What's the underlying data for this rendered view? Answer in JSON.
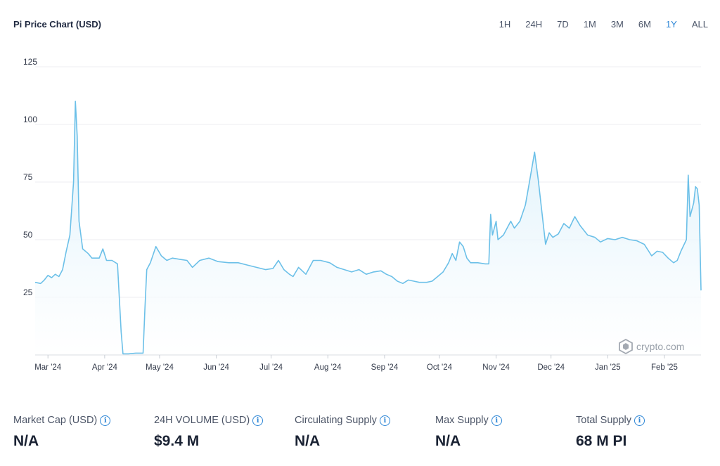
{
  "header": {
    "title": "Pi Price Chart (USD)",
    "ranges": [
      "1H",
      "24H",
      "7D",
      "1M",
      "3M",
      "6M",
      "1Y",
      "ALL"
    ],
    "active_range": "1Y"
  },
  "watermark": {
    "label": "crypto.com",
    "icon": "crypto-com-logo-icon"
  },
  "colors": {
    "line": "#6cc0e8",
    "fill_top": "#d6eefa",
    "accent": "#2d86d6"
  },
  "chart_data": {
    "type": "area",
    "title": "Pi Price Chart (USD)",
    "ylim": [
      0,
      125
    ],
    "yticks": [
      25,
      50,
      75,
      100,
      125
    ],
    "xtick_labels": [
      "Mar '24",
      "Apr '24",
      "May '24",
      "Jun '24",
      "Jul '24",
      "Aug '24",
      "Sep '24",
      "Oct '24",
      "Nov '24",
      "Dec '24",
      "Jan '25",
      "Feb '25"
    ],
    "grid": true,
    "points": [
      [
        "2024-02-23",
        31.5
      ],
      [
        "2024-02-26",
        31.0
      ],
      [
        "2024-02-28",
        32.5
      ],
      [
        "2024-03-01",
        34.5
      ],
      [
        "2024-03-03",
        33.5
      ],
      [
        "2024-03-05",
        35.0
      ],
      [
        "2024-03-07",
        34.0
      ],
      [
        "2024-03-09",
        37.0
      ],
      [
        "2024-03-11",
        45.0
      ],
      [
        "2024-03-13",
        52.0
      ],
      [
        "2024-03-15",
        75.0
      ],
      [
        "2024-03-16",
        110.0
      ],
      [
        "2024-03-17",
        95.0
      ],
      [
        "2024-03-18",
        58.0
      ],
      [
        "2024-03-20",
        46.0
      ],
      [
        "2024-03-23",
        44.0
      ],
      [
        "2024-03-25",
        42.0
      ],
      [
        "2024-03-29",
        42.0
      ],
      [
        "2024-03-31",
        46.0
      ],
      [
        "2024-04-02",
        41.0
      ],
      [
        "2024-04-05",
        41.0
      ],
      [
        "2024-04-08",
        39.5
      ],
      [
        "2024-04-10",
        10.0
      ],
      [
        "2024-04-11",
        0.5
      ],
      [
        "2024-04-14",
        0.5
      ],
      [
        "2024-04-18",
        0.8
      ],
      [
        "2024-04-22",
        0.8
      ],
      [
        "2024-04-23",
        20.0
      ],
      [
        "2024-04-24",
        37.0
      ],
      [
        "2024-04-26",
        40.0
      ],
      [
        "2024-04-29",
        47.0
      ],
      [
        "2024-05-02",
        43.0
      ],
      [
        "2024-05-05",
        41.0
      ],
      [
        "2024-05-08",
        42.0
      ],
      [
        "2024-05-12",
        41.5
      ],
      [
        "2024-05-16",
        41.0
      ],
      [
        "2024-05-19",
        38.0
      ],
      [
        "2024-05-23",
        41.0
      ],
      [
        "2024-05-28",
        42.0
      ],
      [
        "2024-06-02",
        40.5
      ],
      [
        "2024-06-08",
        40.0
      ],
      [
        "2024-06-13",
        40.0
      ],
      [
        "2024-06-18",
        39.0
      ],
      [
        "2024-06-23",
        38.0
      ],
      [
        "2024-06-28",
        37.0
      ],
      [
        "2024-07-02",
        37.5
      ],
      [
        "2024-07-05",
        41.0
      ],
      [
        "2024-07-08",
        37.0
      ],
      [
        "2024-07-11",
        35.0
      ],
      [
        "2024-07-13",
        34.0
      ],
      [
        "2024-07-16",
        38.0
      ],
      [
        "2024-07-20",
        35.0
      ],
      [
        "2024-07-24",
        41.0
      ],
      [
        "2024-07-28",
        41.0
      ],
      [
        "2024-08-02",
        40.0
      ],
      [
        "2024-08-06",
        38.0
      ],
      [
        "2024-08-10",
        37.0
      ],
      [
        "2024-08-14",
        36.0
      ],
      [
        "2024-08-18",
        37.0
      ],
      [
        "2024-08-22",
        35.0
      ],
      [
        "2024-08-26",
        36.0
      ],
      [
        "2024-08-30",
        36.5
      ],
      [
        "2024-09-02",
        35.0
      ],
      [
        "2024-09-05",
        34.0
      ],
      [
        "2024-09-08",
        32.0
      ],
      [
        "2024-09-11",
        31.0
      ],
      [
        "2024-09-14",
        32.5
      ],
      [
        "2024-09-17",
        32.0
      ],
      [
        "2024-09-20",
        31.5
      ],
      [
        "2024-09-24",
        31.5
      ],
      [
        "2024-09-27",
        32.0
      ],
      [
        "2024-09-30",
        34.0
      ],
      [
        "2024-10-03",
        36.0
      ],
      [
        "2024-10-06",
        40.0
      ],
      [
        "2024-10-08",
        44.0
      ],
      [
        "2024-10-10",
        41.0
      ],
      [
        "2024-10-12",
        49.0
      ],
      [
        "2024-10-14",
        47.0
      ],
      [
        "2024-10-16",
        42.0
      ],
      [
        "2024-10-18",
        40.0
      ],
      [
        "2024-10-22",
        40.0
      ],
      [
        "2024-10-26",
        39.5
      ],
      [
        "2024-10-28",
        39.5
      ],
      [
        "2024-10-29",
        61.0
      ],
      [
        "2024-10-30",
        52.0
      ],
      [
        "2024-11-01",
        58.0
      ],
      [
        "2024-11-02",
        50.0
      ],
      [
        "2024-11-05",
        52.0
      ],
      [
        "2024-11-09",
        58.0
      ],
      [
        "2024-11-11",
        55.0
      ],
      [
        "2024-11-14",
        58.0
      ],
      [
        "2024-11-17",
        65.0
      ],
      [
        "2024-11-19",
        74.0
      ],
      [
        "2024-11-22",
        88.0
      ],
      [
        "2024-11-24",
        76.0
      ],
      [
        "2024-11-26",
        62.0
      ],
      [
        "2024-11-28",
        48.0
      ],
      [
        "2024-11-30",
        53.0
      ],
      [
        "2024-12-02",
        51.0
      ],
      [
        "2024-12-05",
        52.5
      ],
      [
        "2024-12-08",
        57.0
      ],
      [
        "2024-12-11",
        55.0
      ],
      [
        "2024-12-14",
        60.0
      ],
      [
        "2024-12-17",
        56.0
      ],
      [
        "2024-12-21",
        52.0
      ],
      [
        "2024-12-25",
        51.0
      ],
      [
        "2024-12-28",
        49.0
      ],
      [
        "2025-01-01",
        50.5
      ],
      [
        "2025-01-05",
        50.0
      ],
      [
        "2025-01-09",
        51.0
      ],
      [
        "2025-01-13",
        50.0
      ],
      [
        "2025-01-17",
        49.5
      ],
      [
        "2025-01-21",
        48.0
      ],
      [
        "2025-01-25",
        43.0
      ],
      [
        "2025-01-28",
        45.0
      ],
      [
        "2025-01-31",
        44.5
      ],
      [
        "2025-02-03",
        42.0
      ],
      [
        "2025-02-06",
        40.0
      ],
      [
        "2025-02-08",
        41.0
      ],
      [
        "2025-02-10",
        45.0
      ],
      [
        "2025-02-13",
        50.0
      ],
      [
        "2025-02-14",
        78.0
      ],
      [
        "2025-02-15",
        60.0
      ],
      [
        "2025-02-16",
        63.0
      ],
      [
        "2025-02-17",
        66.0
      ],
      [
        "2025-02-18",
        73.0
      ],
      [
        "2025-02-19",
        72.0
      ],
      [
        "2025-02-20",
        65.0
      ],
      [
        "2025-02-21",
        28.0
      ]
    ]
  },
  "stats": [
    {
      "label": "Market Cap (USD)",
      "value": "N/A"
    },
    {
      "label": "24H VOLUME (USD)",
      "value": "$9.4 M"
    },
    {
      "label": "Circulating Supply",
      "value": "N/A"
    },
    {
      "label": "Max Supply",
      "value": "N/A"
    },
    {
      "label": "Total Supply",
      "value": "68 M PI"
    }
  ]
}
